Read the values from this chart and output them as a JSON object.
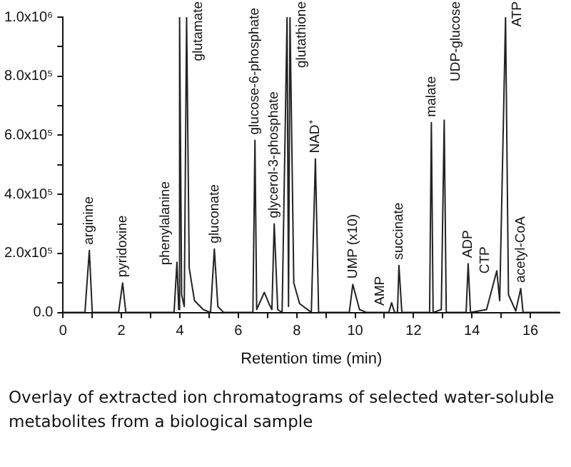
{
  "chart_data": {
    "type": "line",
    "xlabel": "Retention time (min)",
    "x": [
      0,
      0.75,
      0.82,
      0.9,
      1.0,
      1.9,
      2.04,
      2.15,
      3.8,
      3.9,
      3.96,
      3.99,
      4.06,
      4.15,
      4.23,
      4.32,
      4.5,
      4.8,
      5.05,
      5.18,
      5.3,
      5.5,
      6.5,
      6.57,
      6.63,
      6.89,
      7.05,
      7.15,
      7.23,
      7.35,
      7.5,
      7.67,
      7.72,
      7.77,
      7.9,
      8.1,
      8.5,
      8.64,
      8.75,
      9.8,
      9.92,
      10.15,
      10.4,
      11.15,
      11.25,
      11.35,
      11.45,
      11.5,
      11.6,
      12.55,
      12.61,
      12.67,
      12.95,
      13.05,
      13.12,
      13.8,
      13.87,
      13.95,
      14.5,
      14.85,
      14.95,
      15.15,
      15.25,
      15.5,
      15.67,
      15.75,
      17
    ],
    "values": [
      0,
      0,
      100000,
      210000,
      0,
      0,
      100000,
      0,
      0,
      170000,
      10000,
      1000000,
      60000,
      20000,
      1000000,
      150000,
      40000,
      10000,
      0,
      215000,
      20000,
      0,
      0,
      583000,
      10000,
      68000,
      30000,
      10000,
      300000,
      10000,
      0,
      1000000,
      20000,
      1000000,
      100000,
      30000,
      0,
      520000,
      0,
      0,
      95000,
      10000,
      0,
      0,
      33000,
      0,
      0,
      159000,
      0,
      0,
      643000,
      0,
      10000,
      651000,
      0,
      0,
      165000,
      0,
      10000,
      141000,
      40000,
      1000000,
      60000,
      5000,
      81000,
      0,
      0
    ],
    "color": "#222222",
    "xlim": [
      0,
      17
    ],
    "xticks": [
      0,
      {
        "value": 1,
        "label": null
      },
      2,
      {
        "value": 3,
        "label": null
      },
      4,
      {
        "value": 5,
        "label": null
      },
      6,
      {
        "value": 7,
        "label": null
      },
      8,
      {
        "value": 9,
        "label": null
      },
      10,
      {
        "value": 11,
        "label": null
      },
      12,
      {
        "value": 13,
        "label": null
      },
      14,
      {
        "value": 15,
        "label": null
      },
      16
    ],
    "ylim": [
      0,
      1000000
    ],
    "yticks": [
      {
        "value": 0,
        "label": "0.0"
      },
      {
        "value": 100000,
        "label": null
      },
      {
        "value": 200000,
        "label": "2.0x10⁵"
      },
      {
        "value": 300000,
        "label": null
      },
      {
        "value": 400000,
        "label": "4.0x10⁵"
      },
      {
        "value": 500000,
        "label": null
      },
      {
        "value": 600000,
        "label": "6.0x10⁵"
      },
      {
        "value": 700000,
        "label": null
      },
      {
        "value": 800000,
        "label": "8.0x10⁵"
      },
      {
        "value": 900000,
        "label": null
      },
      {
        "value": 1000000,
        "label": "1.0x10⁶"
      }
    ],
    "annotations": [
      {
        "text": "arginine",
        "x": 0.9,
        "y": 210000
      },
      {
        "text": "pyridoxine",
        "x": 2.04,
        "y": 100000
      },
      {
        "text": "phenylalanine",
        "x": 3.9,
        "y": 170000
      },
      {
        "text": "glutamate",
        "x": 4.23,
        "y": 1000000
      },
      {
        "text": "gluconate",
        "x": 5.18,
        "y": 215000
      },
      {
        "text": "glucose-6-phosphate",
        "x": 6.57,
        "y": 583000
      },
      {
        "text": "glycerol-3-phosphate",
        "x": 7.23,
        "y": 300000
      },
      {
        "text": "glutathione",
        "x": 7.77,
        "y": 1000000
      },
      {
        "text": "NAD⁺",
        "x": 8.64,
        "y": 520000
      },
      {
        "text": "UMP (x10)",
        "x": 9.92,
        "y": 95000
      },
      {
        "text": "AMP",
        "x": 11.25,
        "y": 33000
      },
      {
        "text": "succinate",
        "x": 11.5,
        "y": 159000
      },
      {
        "text": "malate",
        "x": 12.61,
        "y": 643000
      },
      {
        "text": "UDP-glucose",
        "x": 13.05,
        "y": 651000
      },
      {
        "text": "ADP",
        "x": 13.87,
        "y": 165000
      },
      {
        "text": "CTP",
        "x": 14.85,
        "y": 141000
      },
      {
        "text": "ATP",
        "x": 15.15,
        "y": 1000000
      },
      {
        "text": "acetyl-CoA",
        "x": 15.67,
        "y": 81000
      },
      "Overlay of extracted ion chromatograms of selected water-soluble metabolites from a biological sample"
    ]
  }
}
